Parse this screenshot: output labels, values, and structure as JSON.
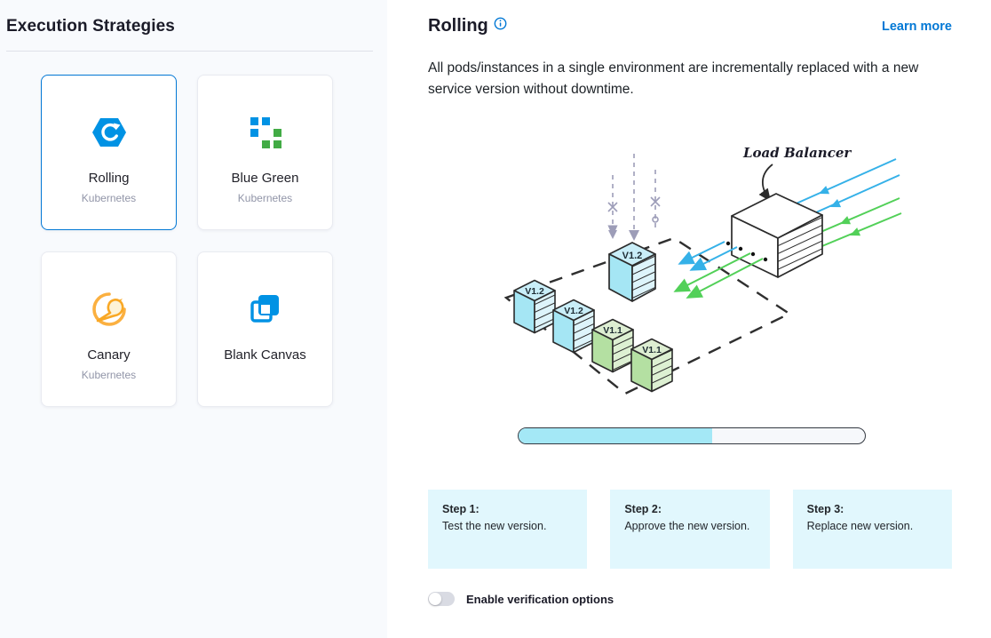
{
  "left_panel": {
    "title": "Execution Strategies",
    "strategies": [
      {
        "label": "Rolling",
        "sublabel": "Kubernetes",
        "icon": "rolling-icon",
        "selected": true
      },
      {
        "label": "Blue Green",
        "sublabel": "Kubernetes",
        "icon": "blue-green-icon",
        "selected": false
      },
      {
        "label": "Canary",
        "sublabel": "Kubernetes",
        "icon": "canary-icon",
        "selected": false
      },
      {
        "label": "Blank Canvas",
        "sublabel": "",
        "icon": "blank-canvas-icon",
        "selected": false
      }
    ]
  },
  "detail_panel": {
    "title": "Rolling",
    "learn_more_label": "Learn more",
    "description": "All pods/instances in a single environment are incrementally replaced with a new service version without downtime.",
    "illustration": {
      "load_balancer_label": "Load Balancer",
      "new_version_label": "V1.2",
      "old_version_label": "V1.1",
      "progress_percent": 56
    },
    "steps": [
      {
        "title": "Step 1:",
        "description": "Test the new version."
      },
      {
        "title": "Step 2:",
        "description": "Approve the new version."
      },
      {
        "title": "Step 3:",
        "description": "Replace new version."
      }
    ],
    "verification_toggle": {
      "label": "Enable verification options",
      "enabled": false
    }
  },
  "colors": {
    "accent_blue": "#0278d5",
    "icon_blue": "#0092e4",
    "icon_green": "#42ab45",
    "icon_orange": "#fbb040",
    "step_card_bg": "#e1f7fd",
    "progress_fill": "#a4e8f6",
    "cube_blue": "#a5e6f4",
    "cube_green": "#b4e0a2"
  }
}
